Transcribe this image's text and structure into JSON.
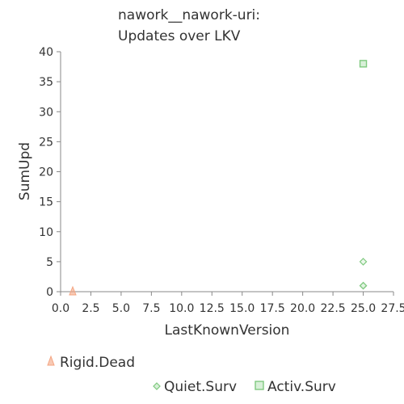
{
  "chart_data": {
    "type": "scatter",
    "title_lines": [
      "nawork__nawork-uri:",
      "Updates over LKV"
    ],
    "xlabel": "LastKnownVersion",
    "ylabel": "SumUpd",
    "xlim": [
      0,
      27.5
    ],
    "ylim": [
      0,
      40
    ],
    "x_ticks": [
      "0.0",
      "2.5",
      "5.0",
      "7.5",
      "10.0",
      "12.5",
      "15.0",
      "17.5",
      "20.0",
      "22.5",
      "25.0",
      "27.5"
    ],
    "y_ticks": [
      "0",
      "5",
      "10",
      "15",
      "20",
      "25",
      "30",
      "35",
      "40"
    ],
    "grid": false,
    "series": [
      {
        "name": "Rigid.Dead",
        "marker": "triangle",
        "color": "#f4a582",
        "points": [
          {
            "x": 1,
            "y": 0
          }
        ]
      },
      {
        "name": "Quiet.Surv",
        "marker": "diamond",
        "color": "#7fc97f",
        "points": [
          {
            "x": 25,
            "y": 1
          },
          {
            "x": 25,
            "y": 1
          },
          {
            "x": 25,
            "y": 5
          }
        ]
      },
      {
        "name": "Activ.Surv",
        "marker": "square",
        "color": "#7fc97f",
        "points": [
          {
            "x": 25,
            "y": 38
          }
        ]
      }
    ]
  }
}
